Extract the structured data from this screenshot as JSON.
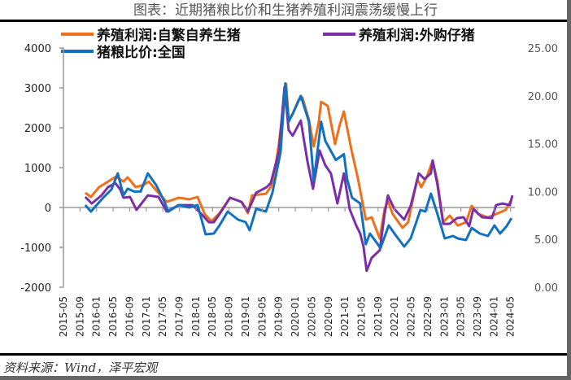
{
  "chart_data": {
    "type": "line",
    "title": "图表：近期猪粮比价和生猪养殖利润震荡缓慢上行",
    "source": "资料来源：Wind，泽平宏观",
    "left_axis": {
      "ylim": [
        -2000,
        4000
      ],
      "ticks": [
        "4000",
        "3000",
        "2000",
        "1000",
        "0",
        "-1000",
        "-2000"
      ]
    },
    "right_axis": {
      "ylim": [
        0,
        25
      ],
      "ticks": [
        "25.00",
        "20.00",
        "15.00",
        "10.00",
        "5.00",
        "0.00"
      ]
    },
    "x_ticks": [
      "2015-05",
      "2015-09",
      "2016-01",
      "2016-05",
      "2016-09",
      "2017-01",
      "2017-05",
      "2017-09",
      "2018-01",
      "2018-05",
      "2018-09",
      "2019-01",
      "2019-05",
      "2019-09",
      "2020-01",
      "2020-05",
      "2020-09",
      "2021-01",
      "2021-05",
      "2021-09",
      "2022-01",
      "2022-05",
      "2022-09",
      "2023-01",
      "2023-05",
      "2023-09",
      "2024-01",
      "2024-05"
    ],
    "grid": false,
    "legend_position": "top-left",
    "series": [
      {
        "name": "养殖利润:自繁自养生猪",
        "axis": "left",
        "color": "#F07019",
        "points": [
          [
            "2015-10-09",
            370
          ],
          [
            "2015-11-20",
            265
          ],
          [
            "2016-01-19",
            510
          ],
          [
            "2016-03-24",
            650
          ],
          [
            "2016-05-23",
            775
          ],
          [
            "2016-07-16",
            650
          ],
          [
            "2016-08-16",
            755
          ],
          [
            "2016-10-15",
            510
          ],
          [
            "2016-12-14",
            570
          ],
          [
            "2017-01-19",
            650
          ],
          [
            "2017-03-18",
            410
          ],
          [
            "2017-05-29",
            140
          ],
          [
            "2017-08-27",
            245
          ],
          [
            "2017-11-14",
            205
          ],
          [
            "2018-01-13",
            265
          ],
          [
            "2018-03-05",
            -165
          ],
          [
            "2018-04-23",
            -345
          ],
          [
            "2018-06-22",
            -145
          ],
          [
            "2018-09-08",
            245
          ],
          [
            "2018-12-01",
            140
          ],
          [
            "2019-01-18",
            -145
          ],
          [
            "2019-02-17",
            305
          ],
          [
            "2019-05-28",
            345
          ],
          [
            "2019-07-03",
            510
          ],
          [
            "2019-07-26",
            775
          ],
          [
            "2019-09-02",
            1590
          ],
          [
            "2019-10-25",
            3100
          ],
          [
            "2019-11-13",
            2200
          ],
          [
            "2019-12-12",
            2350
          ],
          [
            "2020-01-24",
            2690
          ],
          [
            "2020-02-23",
            2755
          ],
          [
            "2020-04-10",
            2200
          ],
          [
            "2020-05-15",
            1530
          ],
          [
            "2020-06-21",
            2140
          ],
          [
            "2020-07-08",
            2650
          ],
          [
            "2020-08-26",
            2550
          ],
          [
            "2020-10-19",
            1590
          ],
          [
            "2020-11-24",
            2080
          ],
          [
            "2020-12-23",
            2410
          ],
          [
            "2021-02-16",
            1470
          ],
          [
            "2021-04-04",
            740
          ],
          [
            "2021-06-02",
            -300
          ],
          [
            "2021-07-14",
            -245
          ],
          [
            "2021-09-13",
            -780
          ],
          [
            "2021-10-18",
            -40
          ],
          [
            "2021-11-12",
            165
          ],
          [
            "2021-12-17",
            -165
          ],
          [
            "2022-02-28",
            -510
          ],
          [
            "2022-04-09",
            -370
          ],
          [
            "2022-06-14",
            715
          ],
          [
            "2022-07-14",
            510
          ],
          [
            "2022-08-25",
            775
          ],
          [
            "2022-10-06",
            1180
          ],
          [
            "2022-11-11",
            650
          ],
          [
            "2022-12-23",
            -370
          ],
          [
            "2023-02-10",
            -205
          ],
          [
            "2023-04-08",
            -450
          ],
          [
            "2023-06-08",
            -370
          ],
          [
            "2023-07-19",
            40
          ],
          [
            "2023-09-06",
            -165
          ],
          [
            "2023-11-17",
            -245
          ],
          [
            "2024-01-16",
            -165
          ],
          [
            "2024-03-26",
            -60
          ],
          [
            "2024-05-02",
            165
          ]
        ]
      },
      {
        "name": "养殖利润:外购仔猪",
        "axis": "left",
        "color": "#7B2FA6",
        "points": [
          [
            "2015-10-09",
            265
          ],
          [
            "2015-11-26",
            100
          ],
          [
            "2016-02-07",
            305
          ],
          [
            "2016-03-24",
            510
          ],
          [
            "2016-05-17",
            610
          ],
          [
            "2016-06-23",
            450
          ],
          [
            "2016-07-16",
            245
          ],
          [
            "2016-09-03",
            265
          ],
          [
            "2016-10-20",
            -60
          ],
          [
            "2017-01-13",
            305
          ],
          [
            "2017-03-30",
            265
          ],
          [
            "2017-05-29",
            -100
          ],
          [
            "2017-08-27",
            60
          ],
          [
            "2017-12-07",
            60
          ],
          [
            "2018-02-06",
            -145
          ],
          [
            "2018-04-05",
            -370
          ],
          [
            "2018-05-10",
            -370
          ],
          [
            "2018-06-22",
            -165
          ],
          [
            "2018-09-08",
            245
          ],
          [
            "2018-12-01",
            140
          ],
          [
            "2019-01-18",
            -100
          ],
          [
            "2019-03-17",
            370
          ],
          [
            "2019-06-04",
            510
          ],
          [
            "2019-07-03",
            610
          ],
          [
            "2019-09-02",
            1390
          ],
          [
            "2019-10-13",
            3020
          ],
          [
            "2019-11-13",
            1940
          ],
          [
            "2019-12-12",
            1800
          ],
          [
            "2020-02-11",
            2180
          ],
          [
            "2020-03-28",
            1180
          ],
          [
            "2020-05-09",
            470
          ],
          [
            "2020-06-27",
            1430
          ],
          [
            "2020-08-08",
            1060
          ],
          [
            "2020-09-19",
            855
          ],
          [
            "2020-11-06",
            100
          ],
          [
            "2020-12-23",
            855
          ],
          [
            "2021-02-05",
            -40
          ],
          [
            "2021-03-22",
            -450
          ],
          [
            "2021-04-21",
            -650
          ],
          [
            "2021-05-15",
            -980
          ],
          [
            "2021-06-08",
            -1590
          ],
          [
            "2021-07-14",
            -1265
          ],
          [
            "2021-09-13",
            -1070
          ],
          [
            "2021-10-18",
            -165
          ],
          [
            "2021-11-12",
            305
          ],
          [
            "2021-12-29",
            -40
          ],
          [
            "2022-03-10",
            -305
          ],
          [
            "2022-04-27",
            40
          ],
          [
            "2022-06-26",
            855
          ],
          [
            "2022-08-07",
            715
          ],
          [
            "2022-09-24",
            855
          ],
          [
            "2022-10-06",
            1180
          ],
          [
            "2022-11-11",
            570
          ],
          [
            "2022-12-23",
            -410
          ],
          [
            "2023-02-10",
            -410
          ],
          [
            "2023-04-03",
            -265
          ],
          [
            "2023-05-20",
            -245
          ],
          [
            "2023-07-01",
            -470
          ],
          [
            "2023-08-01",
            -40
          ],
          [
            "2023-10-05",
            -245
          ],
          [
            "2023-12-16",
            -265
          ],
          [
            "2024-01-16",
            60
          ],
          [
            "2024-03-03",
            100
          ],
          [
            "2024-04-26",
            60
          ],
          [
            "2024-05-14",
            305
          ]
        ]
      },
      {
        "name": "猪粮比价:全国",
        "axis": "right",
        "color": "#1170C0",
        "points": [
          [
            "2015-10-09",
            8.59
          ],
          [
            "2015-11-20",
            7.91
          ],
          [
            "2015-12-26",
            8.5
          ],
          [
            "2016-02-19",
            9.35
          ],
          [
            "2016-04-18",
            10.2
          ],
          [
            "2016-06-05",
            11.9
          ],
          [
            "2016-07-16",
            9.61
          ],
          [
            "2016-08-16",
            10.3
          ],
          [
            "2016-10-03",
            10.0
          ],
          [
            "2016-11-20",
            10.0
          ],
          [
            "2017-01-13",
            11.9
          ],
          [
            "2017-03-12",
            10.7
          ],
          [
            "2017-05-11",
            9.0
          ],
          [
            "2017-06-10",
            7.9
          ],
          [
            "2017-08-27",
            8.6
          ],
          [
            "2017-11-14",
            8.33
          ],
          [
            "2018-01-13",
            8.6
          ],
          [
            "2018-03-11",
            5.53
          ],
          [
            "2018-05-10",
            5.61
          ],
          [
            "2018-06-22",
            6.46
          ],
          [
            "2018-08-21",
            7.91
          ],
          [
            "2018-11-07",
            7.06
          ],
          [
            "2019-01-01",
            6.8
          ],
          [
            "2019-01-30",
            5.95
          ],
          [
            "2019-03-17",
            8.2
          ],
          [
            "2019-05-28",
            7.91
          ],
          [
            "2019-07-15",
            9.86
          ],
          [
            "2019-09-14",
            14.1
          ],
          [
            "2019-10-19",
            21.3
          ],
          [
            "2019-11-13",
            17.3
          ],
          [
            "2019-12-12",
            18.1
          ],
          [
            "2020-02-11",
            20.0
          ],
          [
            "2020-04-10",
            17.3
          ],
          [
            "2020-05-15",
            11.1
          ],
          [
            "2020-07-08",
            17.3
          ],
          [
            "2020-08-08",
            15.3
          ],
          [
            "2020-10-25",
            13.3
          ],
          [
            "2020-12-23",
            13.9
          ],
          [
            "2021-01-17",
            11.3
          ],
          [
            "2021-02-22",
            9.35
          ],
          [
            "2021-04-21",
            8.76
          ],
          [
            "2021-06-02",
            4.5
          ],
          [
            "2021-07-02",
            5.61
          ],
          [
            "2021-09-19",
            4.1
          ],
          [
            "2021-11-18",
            6.46
          ],
          [
            "2021-12-29",
            5.61
          ],
          [
            "2022-03-10",
            4.25
          ],
          [
            "2022-04-27",
            5.1
          ],
          [
            "2022-07-08",
            8.08
          ],
          [
            "2022-08-13",
            7.91
          ],
          [
            "2022-09-24",
            9.78
          ],
          [
            "2022-11-11",
            7.65
          ],
          [
            "2023-01-04",
            5.1
          ],
          [
            "2023-03-03",
            5.36
          ],
          [
            "2023-04-08",
            5.1
          ],
          [
            "2023-06-08",
            4.93
          ],
          [
            "2023-07-19",
            6.2
          ],
          [
            "2023-09-18",
            5.61
          ],
          [
            "2023-11-17",
            5.36
          ],
          [
            "2024-01-04",
            6.46
          ],
          [
            "2024-02-15",
            5.61
          ],
          [
            "2024-04-02",
            6.38
          ],
          [
            "2024-05-08",
            7.23
          ]
        ]
      }
    ]
  }
}
